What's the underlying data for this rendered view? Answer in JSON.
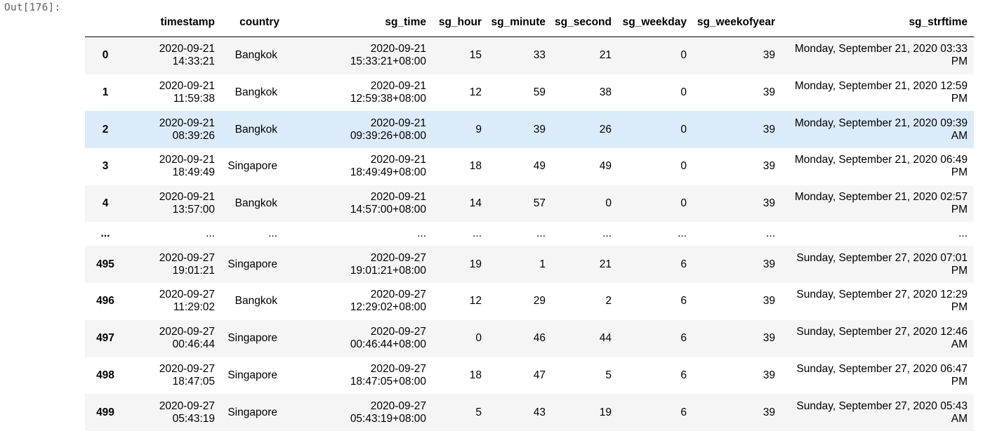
{
  "prompt": "Out[176]:",
  "columns": [
    "",
    "timestamp",
    "country",
    "sg_time",
    "sg_hour",
    "sg_minute",
    "sg_second",
    "sg_weekday",
    "sg_weekofyear",
    "sg_strftime"
  ],
  "rows": [
    {
      "index": "0",
      "timestamp": [
        "2020-09-21",
        "14:33:21"
      ],
      "country": "Bangkok",
      "sg_time": [
        "2020-09-21",
        "15:33:21+08:00"
      ],
      "sg_hour": "15",
      "sg_minute": "33",
      "sg_second": "21",
      "sg_weekday": "0",
      "sg_weekofyear": "39",
      "sg_strftime": [
        "Monday, September 21, 2020 03:33",
        "PM"
      ]
    },
    {
      "index": "1",
      "timestamp": [
        "2020-09-21",
        "11:59:38"
      ],
      "country": "Bangkok",
      "sg_time": [
        "2020-09-21",
        "12:59:38+08:00"
      ],
      "sg_hour": "12",
      "sg_minute": "59",
      "sg_second": "38",
      "sg_weekday": "0",
      "sg_weekofyear": "39",
      "sg_strftime": [
        "Monday, September 21, 2020 12:59",
        "PM"
      ]
    },
    {
      "index": "2",
      "timestamp": [
        "2020-09-21",
        "08:39:26"
      ],
      "country": "Bangkok",
      "sg_time": [
        "2020-09-21",
        "09:39:26+08:00"
      ],
      "sg_hour": "9",
      "sg_minute": "39",
      "sg_second": "26",
      "sg_weekday": "0",
      "sg_weekofyear": "39",
      "sg_strftime": [
        "Monday, September 21, 2020 09:39",
        "AM"
      ]
    },
    {
      "index": "3",
      "timestamp": [
        "2020-09-21",
        "18:49:49"
      ],
      "country": "Singapore",
      "sg_time": [
        "2020-09-21",
        "18:49:49+08:00"
      ],
      "sg_hour": "18",
      "sg_minute": "49",
      "sg_second": "49",
      "sg_weekday": "0",
      "sg_weekofyear": "39",
      "sg_strftime": [
        "Monday, September 21, 2020 06:49",
        "PM"
      ]
    },
    {
      "index": "4",
      "timestamp": [
        "2020-09-21",
        "13:57:00"
      ],
      "country": "Bangkok",
      "sg_time": [
        "2020-09-21",
        "14:57:00+08:00"
      ],
      "sg_hour": "14",
      "sg_minute": "57",
      "sg_second": "0",
      "sg_weekday": "0",
      "sg_weekofyear": "39",
      "sg_strftime": [
        "Monday, September 21, 2020 02:57",
        "PM"
      ]
    },
    {
      "ellipsis": true,
      "index": "...",
      "timestamp": [
        "..."
      ],
      "country": "...",
      "sg_time": [
        "..."
      ],
      "sg_hour": "...",
      "sg_minute": "...",
      "sg_second": "...",
      "sg_weekday": "...",
      "sg_weekofyear": "...",
      "sg_strftime": [
        "..."
      ]
    },
    {
      "index": "495",
      "timestamp": [
        "2020-09-27",
        "19:01:21"
      ],
      "country": "Singapore",
      "sg_time": [
        "2020-09-27",
        "19:01:21+08:00"
      ],
      "sg_hour": "19",
      "sg_minute": "1",
      "sg_second": "21",
      "sg_weekday": "6",
      "sg_weekofyear": "39",
      "sg_strftime": [
        "Sunday, September 27, 2020 07:01",
        "PM"
      ]
    },
    {
      "index": "496",
      "timestamp": [
        "2020-09-27",
        "11:29:02"
      ],
      "country": "Bangkok",
      "sg_time": [
        "2020-09-27",
        "12:29:02+08:00"
      ],
      "sg_hour": "12",
      "sg_minute": "29",
      "sg_second": "2",
      "sg_weekday": "6",
      "sg_weekofyear": "39",
      "sg_strftime": [
        "Sunday, September 27, 2020 12:29",
        "PM"
      ]
    },
    {
      "index": "497",
      "timestamp": [
        "2020-09-27",
        "00:46:44"
      ],
      "country": "Singapore",
      "sg_time": [
        "2020-09-27",
        "00:46:44+08:00"
      ],
      "sg_hour": "0",
      "sg_minute": "46",
      "sg_second": "44",
      "sg_weekday": "6",
      "sg_weekofyear": "39",
      "sg_strftime": [
        "Sunday, September 27, 2020 12:46",
        "AM"
      ]
    },
    {
      "index": "498",
      "timestamp": [
        "2020-09-27",
        "18:47:05"
      ],
      "country": "Singapore",
      "sg_time": [
        "2020-09-27",
        "18:47:05+08:00"
      ],
      "sg_hour": "18",
      "sg_minute": "47",
      "sg_second": "5",
      "sg_weekday": "6",
      "sg_weekofyear": "39",
      "sg_strftime": [
        "Sunday, September 27, 2020 06:47",
        "PM"
      ]
    },
    {
      "index": "499",
      "timestamp": [
        "2020-09-27",
        "05:43:19"
      ],
      "country": "Singapore",
      "sg_time": [
        "2020-09-27",
        "05:43:19+08:00"
      ],
      "sg_hour": "5",
      "sg_minute": "43",
      "sg_second": "19",
      "sg_weekday": "6",
      "sg_weekofyear": "39",
      "sg_strftime": [
        "Sunday, September 27, 2020 05:43",
        "AM"
      ]
    }
  ],
  "colors": {
    "stripe": "#f5f5f5",
    "hover_row": "#dcebfa",
    "prompt": "#5f5f5f"
  }
}
